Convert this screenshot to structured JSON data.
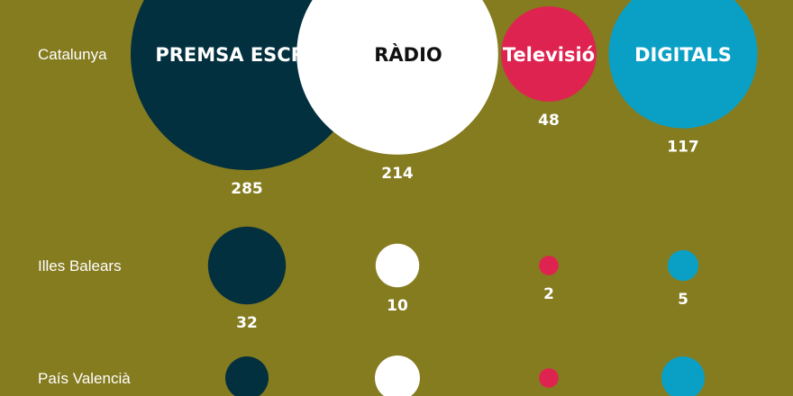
{
  "chart_data": {
    "type": "bubble",
    "categories": [
      "PREMSA ESCRITA",
      "RÀDIO",
      "Televisió",
      "DIGITALS"
    ],
    "regions": [
      "Catalunya",
      "Illes Balears",
      "País Valencià"
    ],
    "series": [
      {
        "region": "Catalunya",
        "values": [
          285,
          214,
          48,
          117
        ]
      },
      {
        "region": "Illes Balears",
        "values": [
          32,
          10,
          2,
          5
        ]
      },
      {
        "region": "País Valencià",
        "values": [
          null,
          null,
          2,
          null
        ]
      }
    ],
    "colors": {
      "background": "#857b1f",
      "PREMSA ESCRITA": "#02303f",
      "RÀDIO": "#ffffff",
      "Televisió": "#de2350",
      "DIGITALS": "#0aa0c6"
    },
    "category_label_colors": {
      "PREMSA ESCRITA": "#ffffff",
      "RÀDIO": "#111111",
      "Televisió": "#ffffff",
      "DIGITALS": "#ffffff"
    }
  }
}
